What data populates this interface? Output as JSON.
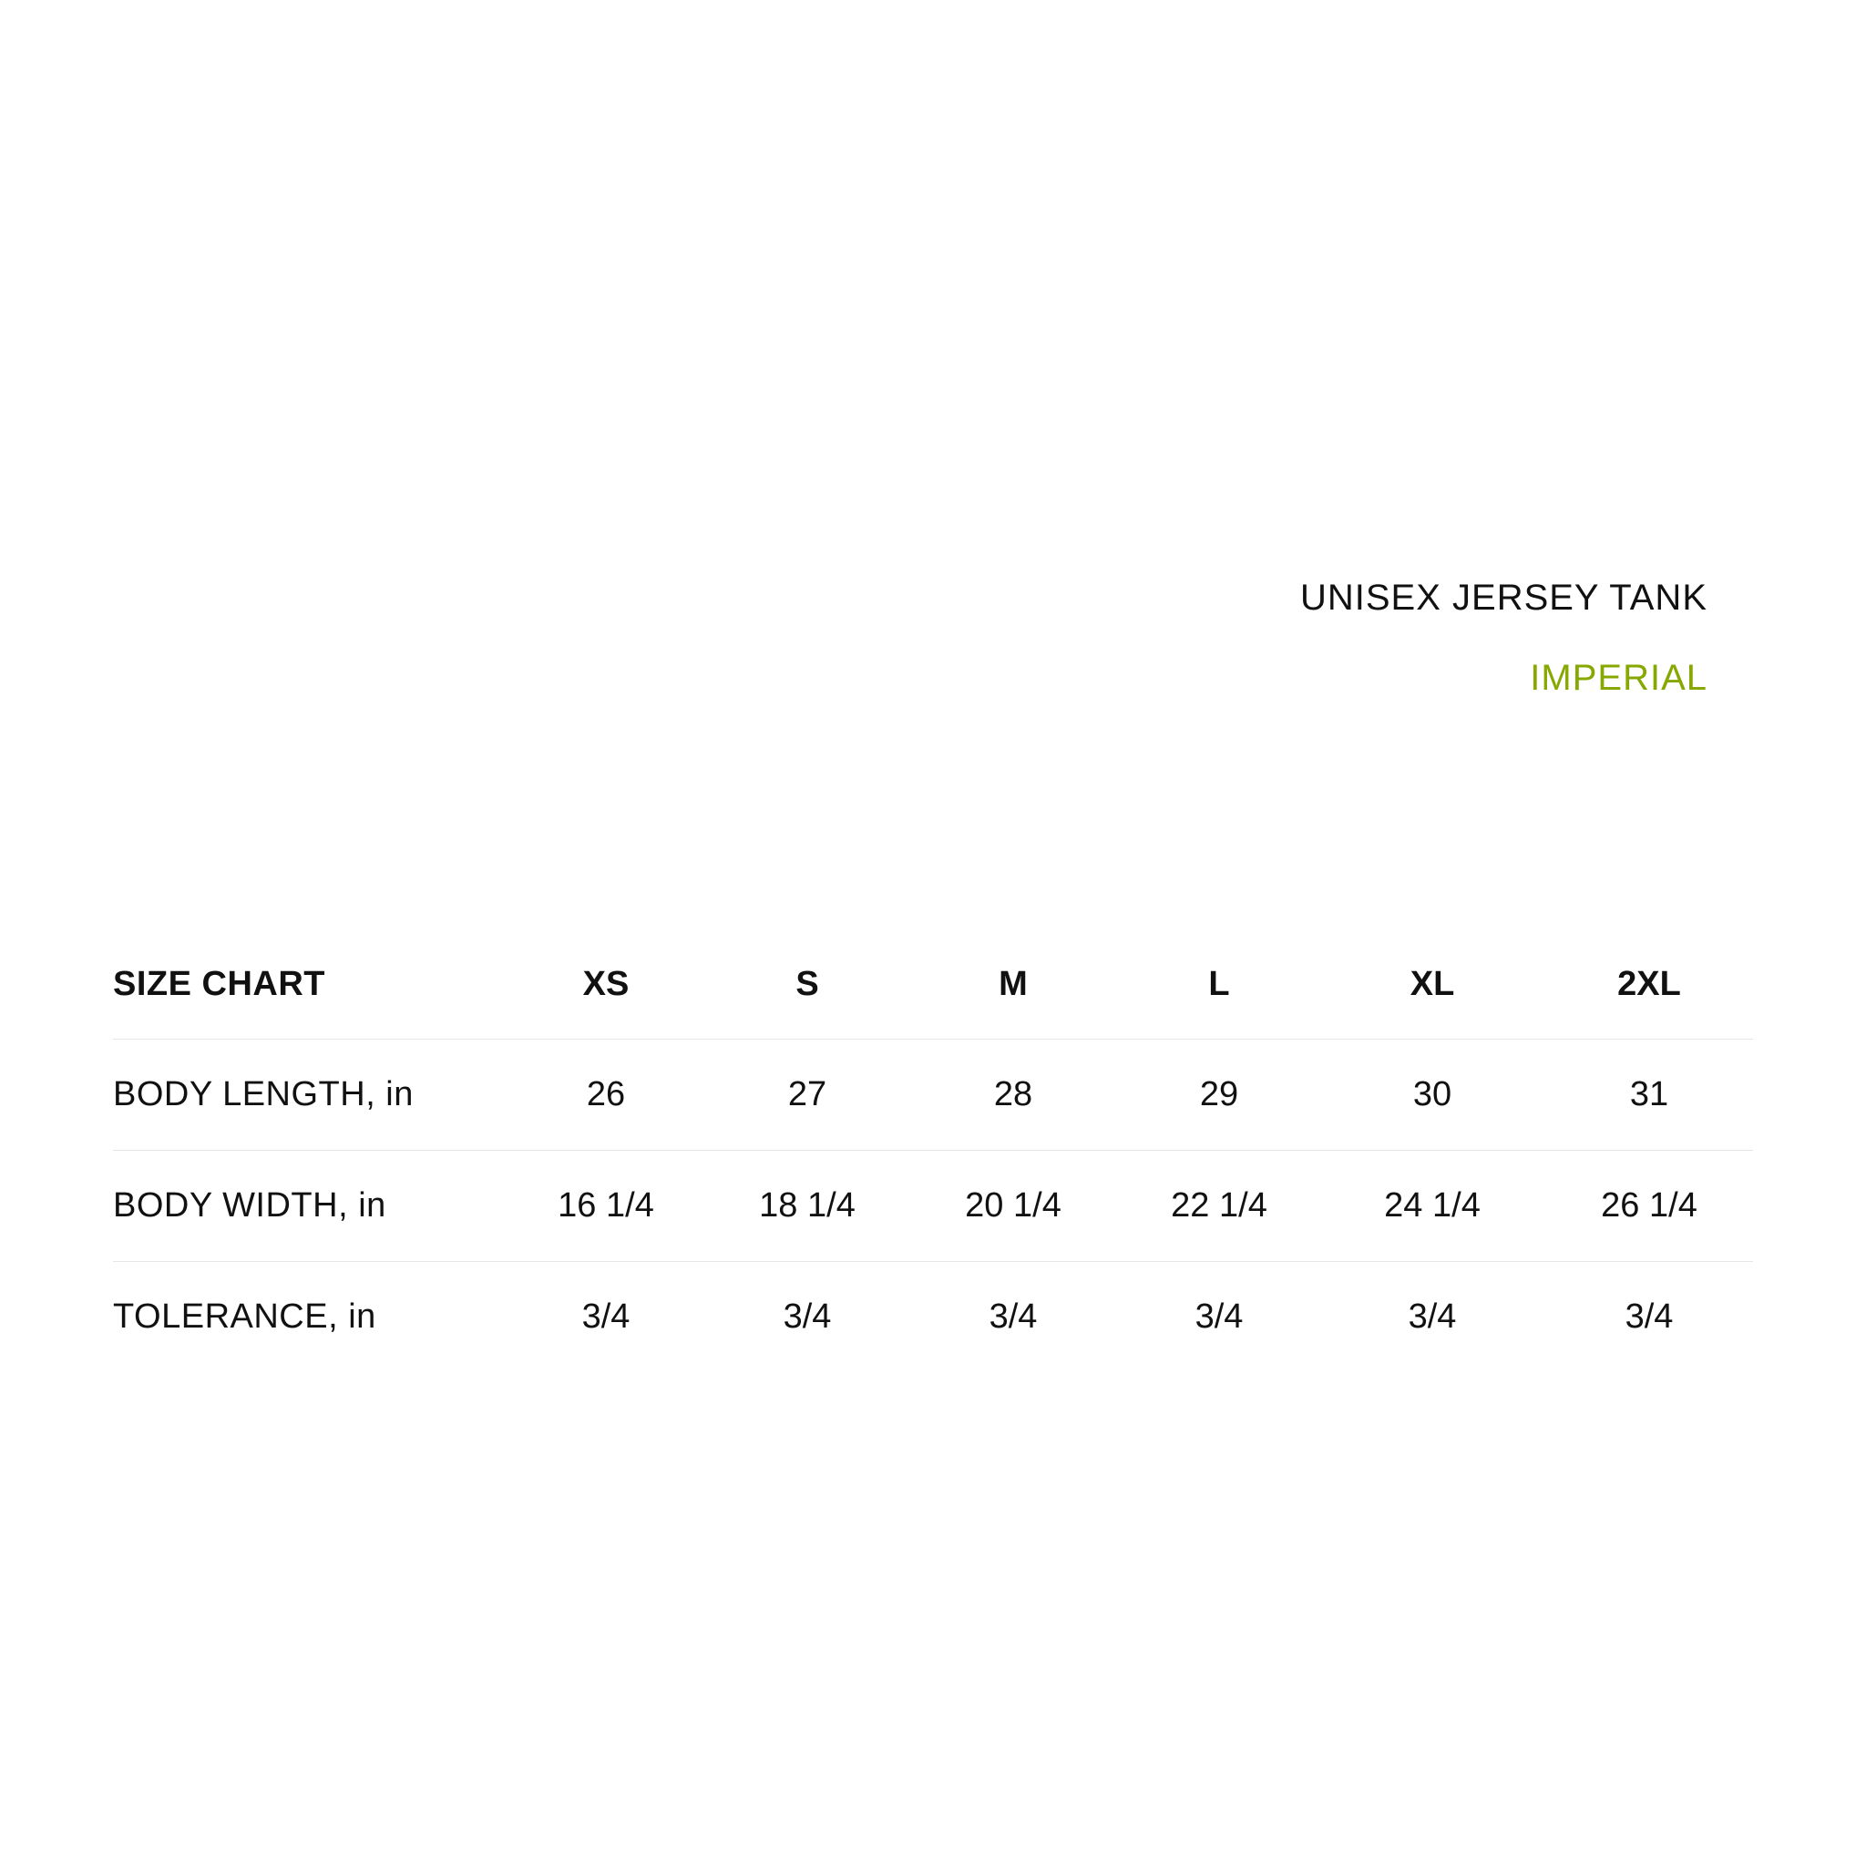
{
  "title": "UNISEX JERSEY TANK",
  "unit_system": "IMPERIAL",
  "accent_color": "#86a800",
  "table": {
    "header": [
      "SIZE CHART",
      "XS",
      "S",
      "M",
      "L",
      "XL",
      "2XL"
    ],
    "rows": [
      [
        "BODY LENGTH, in",
        "26",
        "27",
        "28",
        "29",
        "30",
        "31"
      ],
      [
        "BODY WIDTH, in",
        "16 1/4",
        "18 1/4",
        "20 1/4",
        "22 1/4",
        "24 1/4",
        "26 1/4"
      ],
      [
        "TOLERANCE, in",
        "3/4",
        "3/4",
        "3/4",
        "3/4",
        "3/4",
        "3/4"
      ]
    ]
  }
}
